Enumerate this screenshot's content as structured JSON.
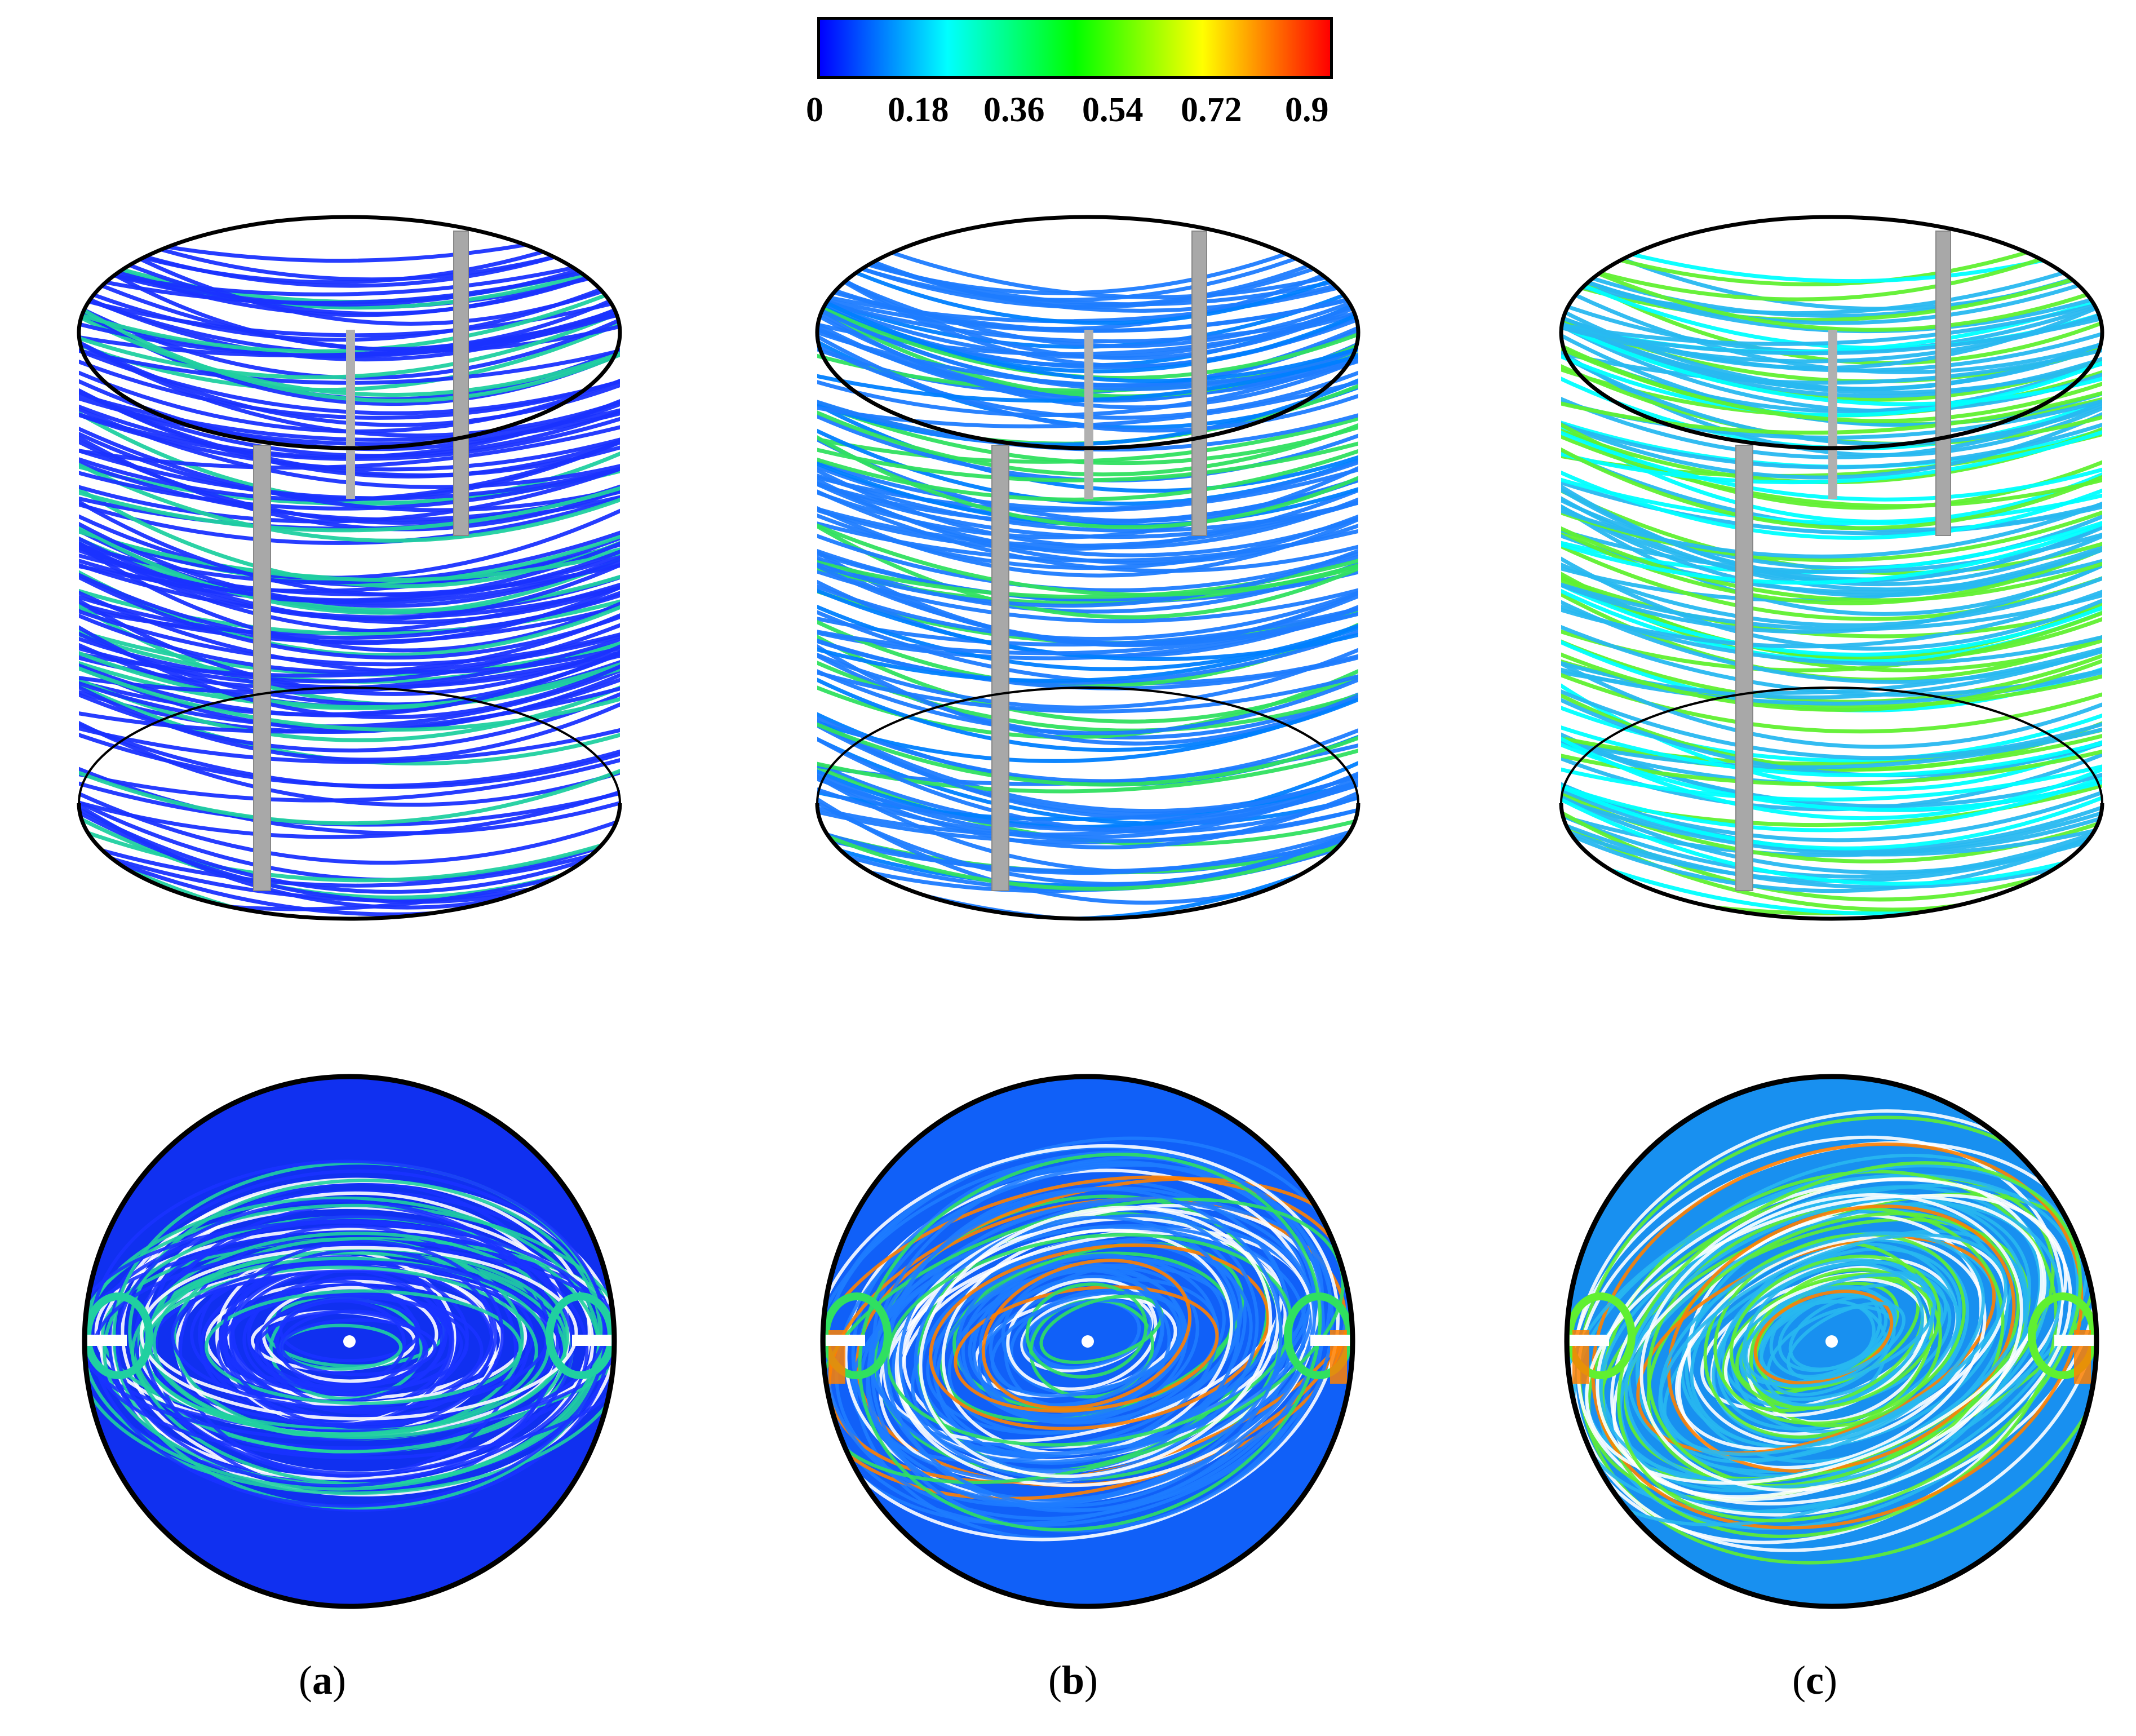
{
  "colorbar": {
    "ticks": [
      "0",
      "0.18",
      "0.36",
      "0.54",
      "0.72",
      "0.9"
    ],
    "min": 0,
    "max": 0.9,
    "colors": [
      "#0000ff",
      "#0080ff",
      "#00ffff",
      "#00ff80",
      "#00ff00",
      "#80ff00",
      "#ffff00",
      "#ff8000",
      "#ff0000"
    ]
  },
  "panels": [
    {
      "id": "a",
      "label_open": "(",
      "label_letter": "a",
      "label_close": ")",
      "dominant_color": "#1a33ff",
      "accent_color": "#20d0a0"
    },
    {
      "id": "b",
      "label_open": "(",
      "label_letter": "b",
      "label_close": ")",
      "dominant_color": "#1e7cff",
      "accent_color": "#30e060"
    },
    {
      "id": "c",
      "label_open": "(",
      "label_letter": "c",
      "label_close": ")",
      "dominant_color": "#28b8f0",
      "accent_color": "#60f030"
    }
  ]
}
